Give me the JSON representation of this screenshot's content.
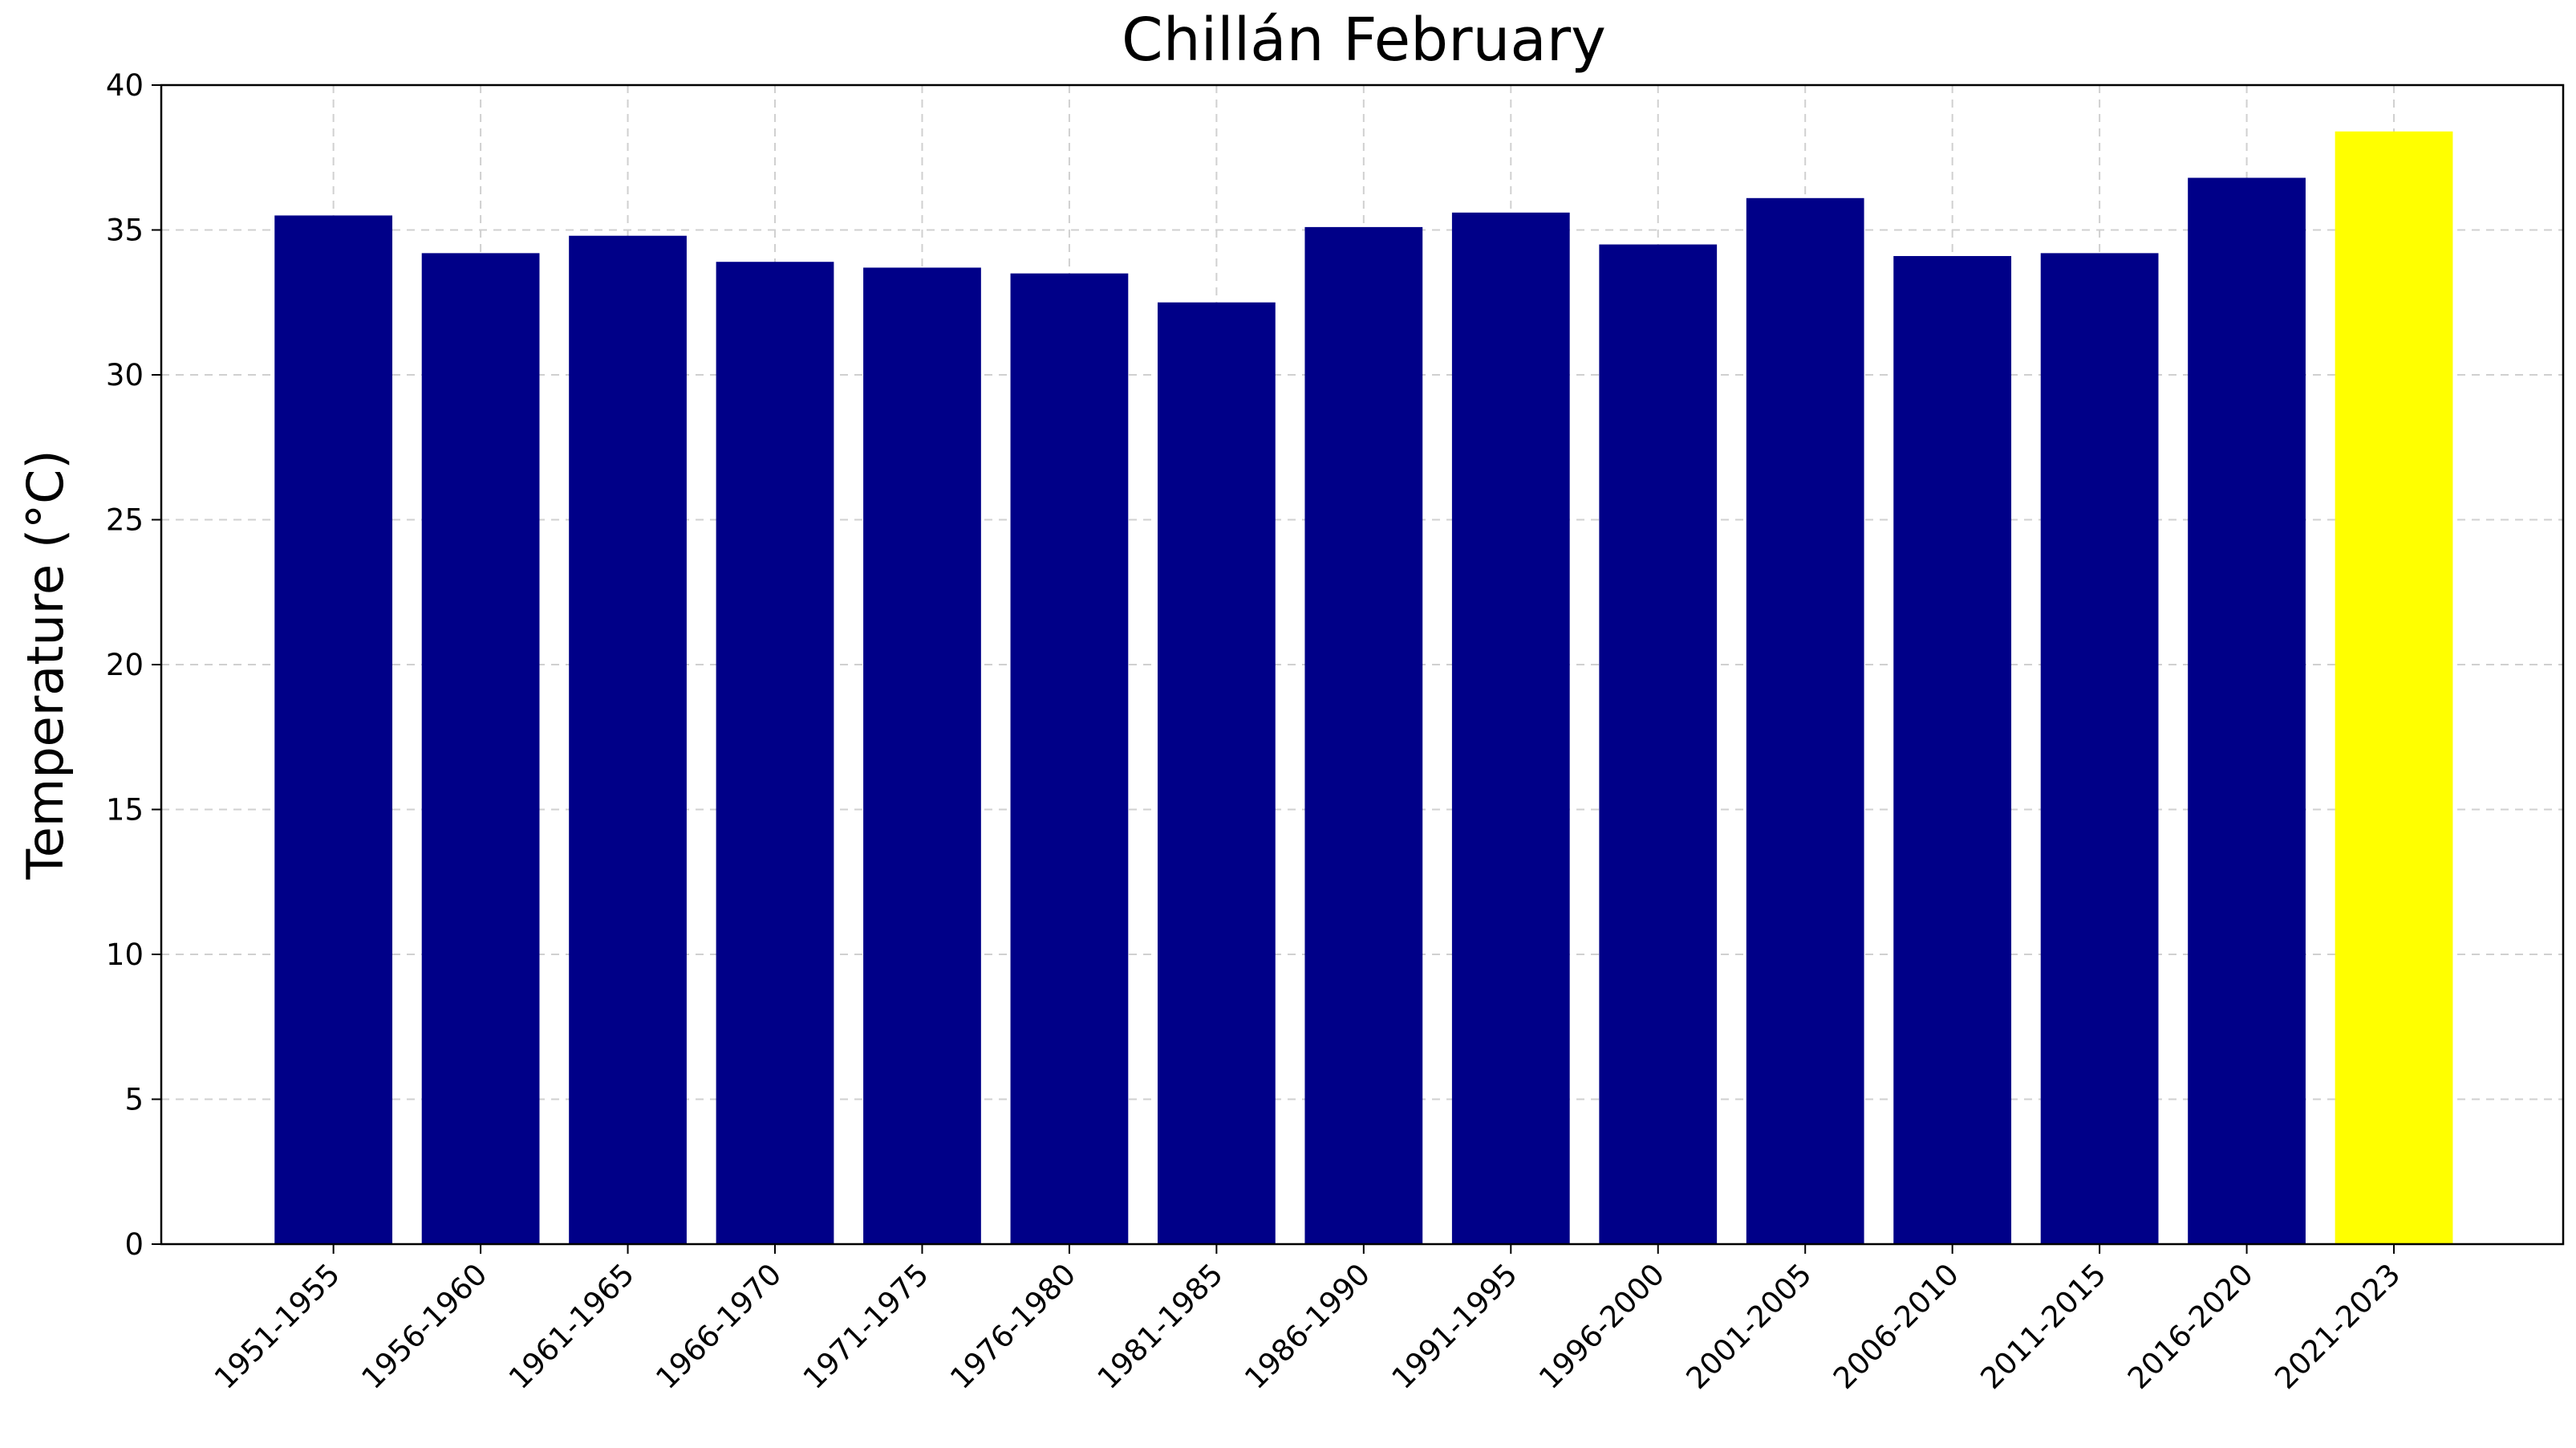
{
  "chart_data": {
    "type": "bar",
    "title": "Chillán February",
    "y_label": "Temperature (°C)",
    "categories": [
      "1951-1955",
      "1956-1960",
      "1961-1965",
      "1966-1970",
      "1971-1975",
      "1976-1980",
      "1981-1985",
      "1986-1990",
      "1991-1995",
      "1996-2000",
      "2001-2005",
      "2006-2010",
      "2011-2015",
      "2016-2020",
      "2021-2023"
    ],
    "values": [
      35.5,
      34.2,
      34.8,
      33.9,
      33.7,
      33.5,
      32.5,
      35.1,
      35.6,
      34.5,
      36.1,
      34.1,
      34.2,
      36.8,
      38.4
    ],
    "colors": [
      "#000088",
      "#000088",
      "#000088",
      "#000088",
      "#000088",
      "#000088",
      "#000088",
      "#000088",
      "#000088",
      "#000088",
      "#000088",
      "#000088",
      "#000088",
      "#000088",
      "#ffff00"
    ],
    "ylim": [
      0,
      40
    ],
    "yticks": [
      0,
      5,
      10,
      15,
      20,
      25,
      30,
      35,
      40
    ],
    "grid": true
  }
}
